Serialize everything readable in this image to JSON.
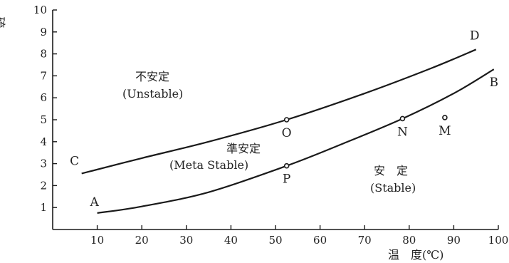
{
  "chart_data": {
    "type": "line",
    "ylabel": "硫黄濃度(%)",
    "xlabel": "温　度(℃)",
    "xlim": [
      0,
      100
    ],
    "ylim": [
      0,
      10
    ],
    "xticks": [
      "10",
      "20",
      "30",
      "40",
      "50",
      "60",
      "70",
      "80",
      "90",
      "100"
    ],
    "yticks": [
      "1",
      "2",
      "3",
      "4",
      "5",
      "6",
      "7",
      "8",
      "9",
      "10"
    ],
    "grid": false,
    "series": [
      {
        "endpoints": [
          "C",
          "D"
        ],
        "x": [
          6.5,
          20,
          35,
          52.5,
          70,
          85,
          95
        ],
        "y": [
          2.55,
          3.25,
          4.0,
          5.0,
          6.2,
          7.35,
          8.2
        ]
      },
      {
        "endpoints": [
          "A",
          "B"
        ],
        "x": [
          10,
          20,
          35,
          52.5,
          65,
          78.5,
          90,
          99
        ],
        "y": [
          0.75,
          1.05,
          1.7,
          2.9,
          3.9,
          5.05,
          6.2,
          7.3
        ]
      }
    ],
    "points": [
      {
        "label": "O",
        "x": 52.5,
        "y": 5.0
      },
      {
        "label": "P",
        "x": 52.5,
        "y": 2.9
      },
      {
        "label": "N",
        "x": 78.5,
        "y": 5.05
      },
      {
        "label": "M",
        "x": 88.0,
        "y": 5.1
      }
    ],
    "curve_labels": [
      {
        "label": "A",
        "x": 10,
        "y": 0.75
      },
      {
        "label": "B",
        "x": 99,
        "y": 7.3
      },
      {
        "label": "C",
        "x": 6.5,
        "y": 2.55
      },
      {
        "label": "D",
        "x": 95,
        "y": 8.2
      }
    ],
    "regions": [
      {
        "lines": [
          "不安定",
          "(Unstable)"
        ]
      },
      {
        "lines": [
          "準安定",
          "(Meta Stable)"
        ]
      },
      {
        "lines": [
          "安　定",
          "(Stable)"
        ]
      }
    ]
  }
}
